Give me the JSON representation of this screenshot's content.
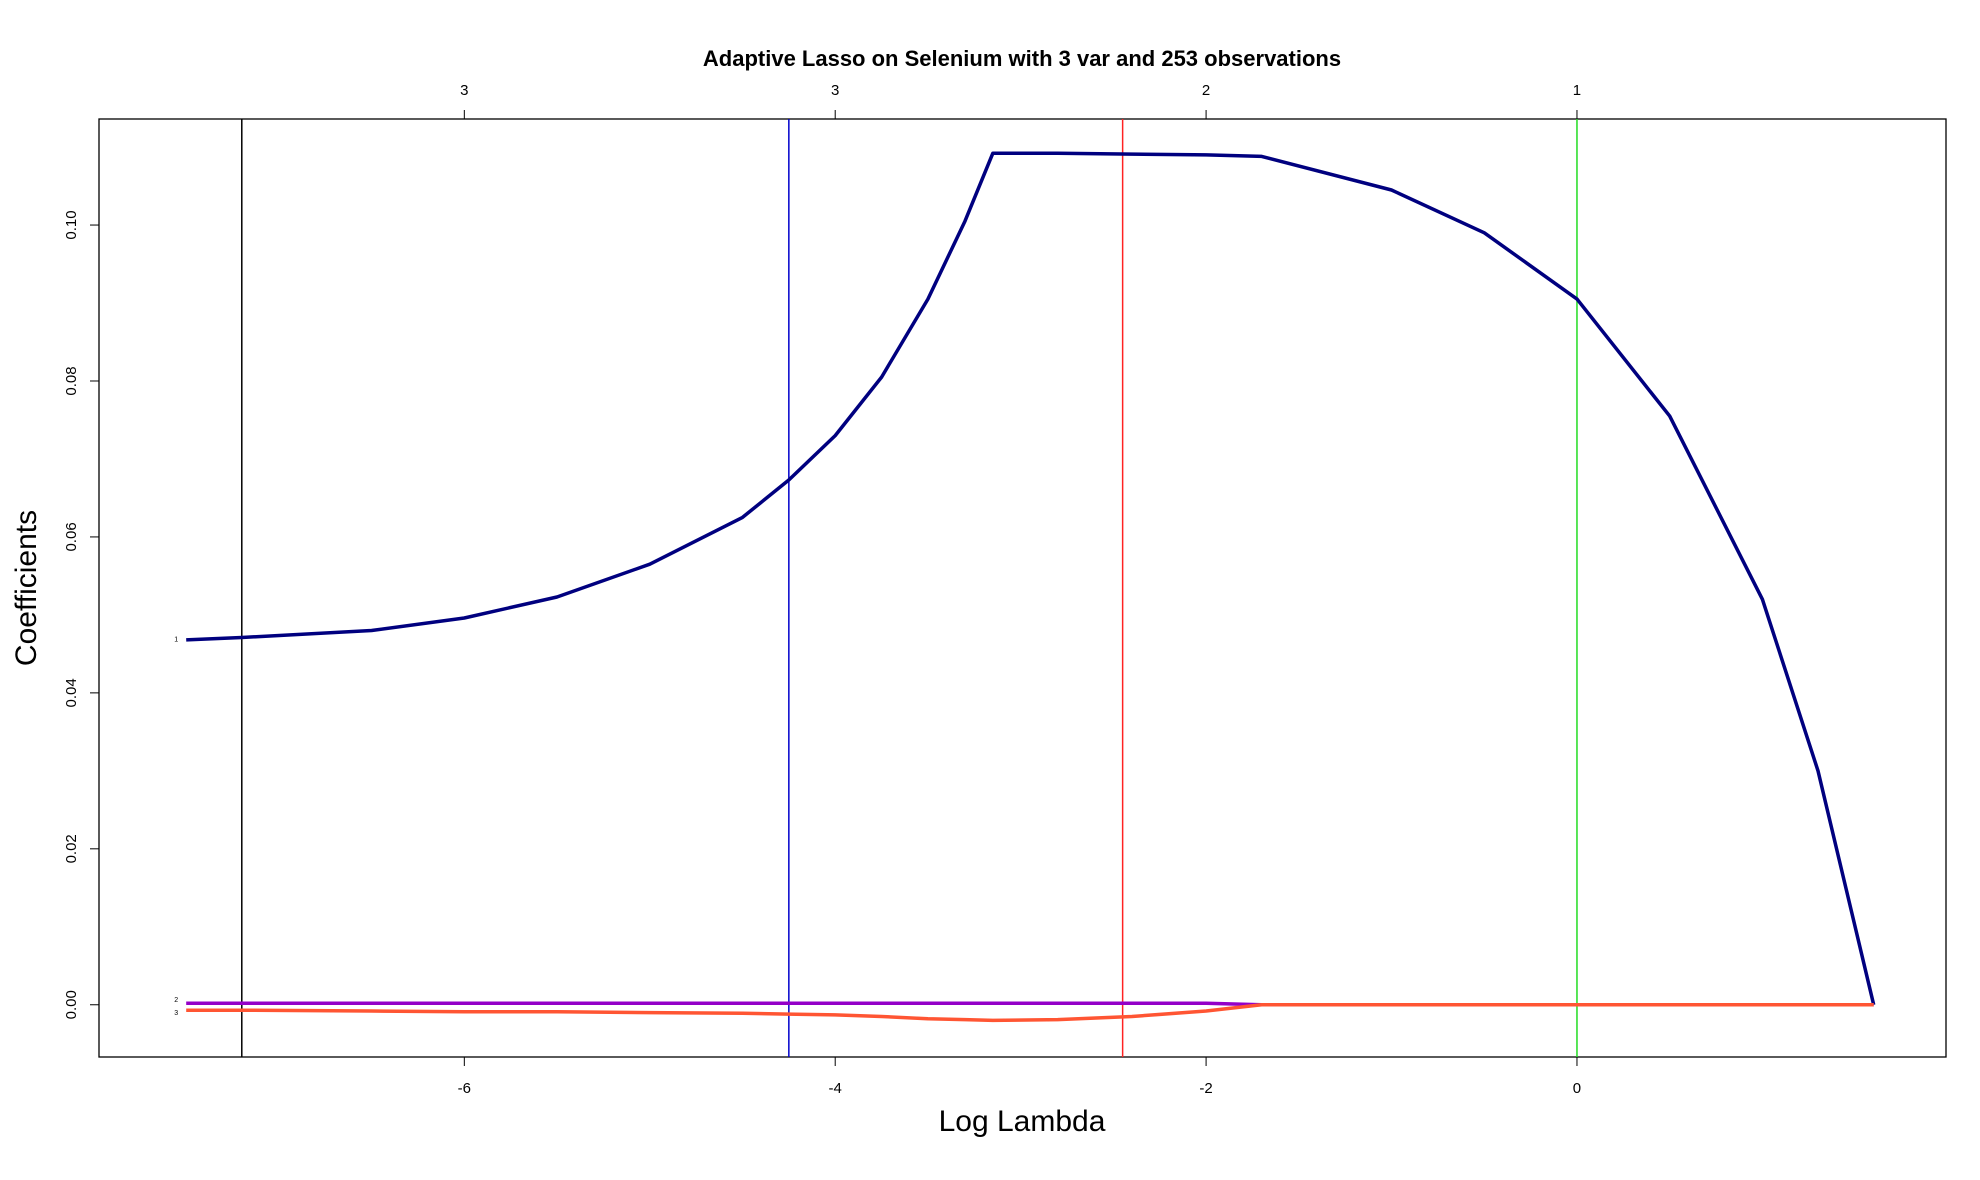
{
  "chart_data": {
    "type": "line",
    "title": "Adaptive Lasso on Selenium with 3 var and 253 observations",
    "x_label": "Log Lambda",
    "y_label": "Coefficients",
    "x": [
      -7.5,
      -7.2,
      -6.5,
      -6,
      -5.5,
      -5,
      -4.5,
      -4.25,
      -4,
      -3.75,
      -3.5,
      -3.3,
      -3.15,
      -2.8,
      -2.4,
      -2,
      -1.7,
      -1,
      -0.5,
      0,
      0.5,
      1,
      1.3,
      1.6
    ],
    "series": [
      {
        "label": "1",
        "color": "#00007f",
        "values": [
          0.0468,
          0.0471,
          0.048,
          0.0496,
          0.0523,
          0.0565,
          0.0625,
          0.0673,
          0.073,
          0.0805,
          0.0905,
          0.1005,
          0.1092,
          0.1092,
          0.1091,
          0.109,
          0.1088,
          0.1045,
          0.099,
          0.0905,
          0.0755,
          0.052,
          0.03,
          0.0
        ]
      },
      {
        "label": "2",
        "color": "#9400c8",
        "values": [
          0.0002,
          0.0002,
          0.0002,
          0.0002,
          0.0002,
          0.0002,
          0.0002,
          0.0002,
          0.0002,
          0.0002,
          0.0002,
          0.0002,
          0.0002,
          0.0002,
          0.0002,
          0.0002,
          0,
          0,
          0,
          0,
          0,
          0,
          0,
          0
        ]
      },
      {
        "label": "3",
        "color": "#ff5533",
        "values": [
          -0.0007,
          -0.0007,
          -0.0008,
          -0.0009,
          -0.0009,
          -0.001,
          -0.0011,
          -0.0012,
          -0.0013,
          -0.0015,
          -0.0018,
          -0.0019,
          -0.002,
          -0.0019,
          -0.0015,
          -0.0008,
          0,
          0,
          0,
          0,
          0,
          0,
          0,
          0
        ]
      }
    ],
    "vlines": [
      {
        "x": -7.2,
        "color": "#000000"
      },
      {
        "x": -4.25,
        "color": "#0000cc"
      },
      {
        "x": -2.45,
        "color": "#ff2222"
      },
      {
        "x": 0,
        "color": "#22dd22"
      }
    ],
    "xlim": [
      -7.97,
      1.99
    ],
    "ylim": [
      -0.0067,
      0.1136
    ],
    "xticks": [
      -6,
      -4,
      -2,
      0
    ],
    "yticks": [
      {
        "value": 0,
        "label": "0.00"
      },
      0.02,
      0.04,
      0.06,
      0.08,
      {
        "value": 0.1,
        "label": "0.10"
      }
    ],
    "top_tick_labels": [
      "3",
      "3",
      "2",
      "1"
    ]
  }
}
